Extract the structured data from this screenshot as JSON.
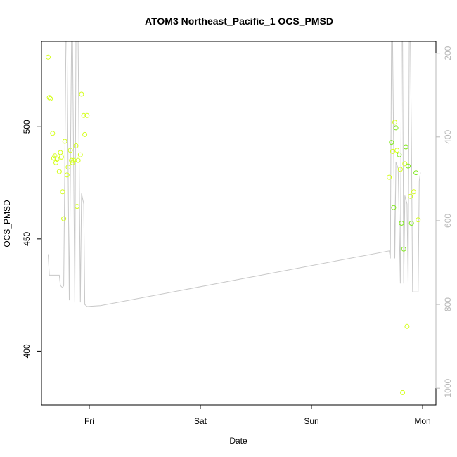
{
  "chart_data": {
    "type": "scatter",
    "title": "ATOM3 Northeast_Pacific_1 OCS_PMSD",
    "xlabel": "Date",
    "ylabel": "OCS_PMSD",
    "x_ticks": [
      "Fri",
      "Sat",
      "Sun",
      "Mon"
    ],
    "x_tick_values": [
      0,
      1,
      2,
      3
    ],
    "x_range": [
      -0.43,
      3.12
    ],
    "y_ticks": [
      400,
      450,
      500
    ],
    "ylim": [
      376,
      538
    ],
    "y2_ticks": [
      200,
      400,
      600,
      800,
      1000
    ],
    "y2lim": [
      1040,
      172
    ],
    "y2_reversed": true,
    "grid": false,
    "colors": {
      "points_light": "#d4ff1a",
      "points_dark": "#7ee81a",
      "line": "#c8c8c8",
      "axis": "#000000",
      "right_axis": "#b8b8b8"
    },
    "series": [
      {
        "marker": "open-circle",
        "axis": "left",
        "points": [
          [
            -0.37,
            531.0
          ],
          [
            -0.36,
            513.0
          ],
          [
            -0.35,
            512.5
          ],
          [
            -0.33,
            497.0
          ],
          [
            -0.32,
            486.0
          ],
          [
            -0.31,
            487.0
          ],
          [
            -0.3,
            484.0
          ],
          [
            -0.29,
            485.5
          ],
          [
            -0.27,
            480.0
          ],
          [
            -0.26,
            488.5
          ],
          [
            -0.25,
            486.5
          ],
          [
            -0.24,
            471.0
          ],
          [
            -0.23,
            459.0
          ],
          [
            -0.22,
            493.5
          ],
          [
            -0.2,
            478.5
          ],
          [
            -0.19,
            482.0
          ],
          [
            -0.17,
            489.5
          ],
          [
            -0.16,
            485.0
          ],
          [
            -0.15,
            484.0
          ],
          [
            -0.14,
            485.0
          ],
          [
            -0.12,
            491.5
          ],
          [
            -0.11,
            464.5
          ],
          [
            -0.1,
            485.0
          ],
          [
            -0.08,
            487.5
          ],
          [
            -0.07,
            514.5
          ],
          [
            -0.05,
            505.0
          ],
          [
            -0.04,
            496.5
          ],
          [
            -0.02,
            505.0
          ],
          [
            2.7,
            477.5
          ],
          [
            2.72,
            493.0
          ],
          [
            2.73,
            489.0
          ],
          [
            2.74,
            464.0
          ],
          [
            2.75,
            502.0
          ],
          [
            2.76,
            499.5
          ],
          [
            2.77,
            489.5
          ],
          [
            2.79,
            487.5
          ],
          [
            2.8,
            481.0
          ],
          [
            2.81,
            457.0
          ],
          [
            2.82,
            381.5
          ],
          [
            2.83,
            445.5
          ],
          [
            2.84,
            483.5
          ],
          [
            2.85,
            491.0
          ],
          [
            2.86,
            411.0
          ],
          [
            2.87,
            482.5
          ],
          [
            2.89,
            469.0
          ],
          [
            2.9,
            457.0
          ],
          [
            2.92,
            471.0
          ],
          [
            2.94,
            479.5
          ],
          [
            2.96,
            458.5
          ]
        ]
      },
      {
        "marker": "line",
        "axis": "right",
        "points": [
          [
            -0.37,
            680
          ],
          [
            -0.36,
            730
          ],
          [
            -0.3,
            730
          ],
          [
            -0.27,
            730
          ],
          [
            -0.26,
            755
          ],
          [
            -0.24,
            760
          ],
          [
            -0.23,
            755
          ],
          [
            -0.21,
            172
          ],
          [
            -0.2,
            172
          ],
          [
            -0.18,
            790
          ],
          [
            -0.16,
            172
          ],
          [
            -0.15,
            172
          ],
          [
            -0.13,
            795
          ],
          [
            -0.12,
            172
          ],
          [
            -0.1,
            172
          ],
          [
            -0.08,
            795
          ],
          [
            -0.07,
            535
          ],
          [
            -0.05,
            560
          ],
          [
            -0.04,
            800
          ],
          [
            -0.02,
            805
          ],
          [
            0.1,
            803
          ],
          [
            2.7,
            672
          ],
          [
            2.71,
            690
          ],
          [
            2.72,
            172
          ],
          [
            2.73,
            172
          ],
          [
            2.75,
            690
          ],
          [
            2.76,
            460
          ],
          [
            2.78,
            475
          ],
          [
            2.8,
            750
          ],
          [
            2.81,
            172
          ],
          [
            2.82,
            172
          ],
          [
            2.83,
            750
          ],
          [
            2.84,
            540
          ],
          [
            2.86,
            560
          ],
          [
            2.87,
            750
          ],
          [
            2.88,
            172
          ],
          [
            2.89,
            172
          ],
          [
            2.9,
            420
          ],
          [
            2.91,
            770
          ],
          [
            2.96,
            770
          ],
          [
            2.97,
            505
          ],
          [
            2.98,
            485
          ]
        ]
      }
    ]
  }
}
